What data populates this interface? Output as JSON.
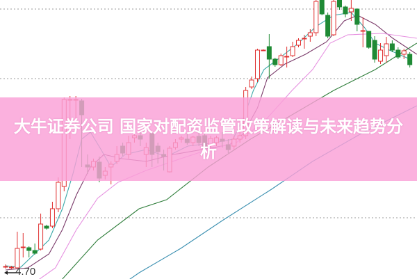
{
  "title": "大牛证券公司 国家对配资监管政策解读与未来趋势分析",
  "chart_data": {
    "type": "candlestick",
    "title": "大牛证券公司 国家对配资监管政策解读与未来趋势分析",
    "ylim": [
      4.57,
      8.58
    ],
    "grid": "dotted horizontal",
    "gridlines": [
      8.45,
      7.45,
      5.45
    ],
    "annotations": [
      {
        "text": "4.70",
        "price": 4.7
      }
    ],
    "colors": {
      "up": "#e03030",
      "down": "#1f8a35",
      "ma5": "#3aa8a8",
      "ma10": "#7a3a6a",
      "ma20": "#e690e0",
      "ma60": "#2e7d3a",
      "ma120": "#3a8fb0"
    },
    "candles_ohlc": [
      [
        4.75,
        4.75,
        4.78,
        4.72
      ],
      [
        4.73,
        4.74,
        4.76,
        4.71
      ],
      [
        4.73,
        5.01,
        5.25,
        4.72
      ],
      [
        5.03,
        5.03,
        5.23,
        4.88
      ],
      [
        5.02,
        4.98,
        5.04,
        4.88
      ],
      [
        4.98,
        4.94,
        5.08,
        4.92
      ],
      [
        5.0,
        5.36,
        5.51,
        4.98
      ],
      [
        5.33,
        5.3,
        5.35,
        5.28
      ],
      [
        5.33,
        5.58,
        5.68,
        5.3
      ],
      [
        5.58,
        5.96,
        6.03,
        5.53
      ],
      [
        5.9,
        7.15,
        7.18,
        5.83
      ],
      [
        7.15,
        7.15,
        7.2,
        6.58
      ],
      [
        7.15,
        7.15,
        7.2,
        6.68
      ],
      [
        7.13,
        6.93,
        7.16,
        6.18
      ],
      [
        6.21,
        6.18,
        6.36,
        6.08
      ],
      [
        6.18,
        6.26,
        6.3,
        6.13
      ],
      [
        6.25,
        6.02,
        6.33,
        5.96
      ],
      [
        6.06,
        6.12,
        6.18,
        6.0
      ],
      [
        6.18,
        6.22,
        6.26,
        5.93
      ],
      [
        6.26,
        6.36,
        6.48,
        6.22
      ],
      [
        6.48,
        6.38,
        6.53,
        6.34
      ],
      [
        6.36,
        6.53,
        6.63,
        6.3
      ],
      [
        6.6,
        6.63,
        6.7,
        6.53
      ],
      [
        6.63,
        6.58,
        6.68,
        6.48
      ],
      [
        6.36,
        6.46,
        6.53,
        6.18
      ],
      [
        6.66,
        6.36,
        6.68,
        6.18
      ],
      [
        6.48,
        6.4,
        6.53,
        6.23
      ],
      [
        6.36,
        6.33,
        6.43,
        6.13
      ],
      [
        6.11,
        6.45,
        6.48,
        6.1
      ],
      [
        6.46,
        6.53,
        6.58,
        6.43
      ],
      [
        6.58,
        6.6,
        6.63,
        6.53
      ],
      [
        6.58,
        6.53,
        6.66,
        6.5
      ],
      [
        6.53,
        6.61,
        6.63,
        6.48
      ],
      [
        6.62,
        6.53,
        6.68,
        6.48
      ],
      [
        6.63,
        6.45,
        6.68,
        6.4
      ],
      [
        6.5,
        6.59,
        6.63,
        6.46
      ],
      [
        6.53,
        6.6,
        6.63,
        6.48
      ],
      [
        6.58,
        6.55,
        6.68,
        6.46
      ],
      [
        6.5,
        6.43,
        6.58,
        6.38
      ],
      [
        6.48,
        6.58,
        6.63,
        6.43
      ],
      [
        6.58,
        6.63,
        6.73,
        6.53
      ],
      [
        6.63,
        7.28,
        7.33,
        6.58
      ],
      [
        7.33,
        7.43,
        7.48,
        7.3
      ],
      [
        7.45,
        7.86,
        7.88,
        7.4
      ],
      [
        7.86,
        7.86,
        7.87,
        7.85
      ],
      [
        7.91,
        7.73,
        8.09,
        7.45
      ],
      [
        7.73,
        7.65,
        7.75,
        7.62
      ],
      [
        7.65,
        7.78,
        7.81,
        7.63
      ],
      [
        7.77,
        7.77,
        7.91,
        7.61
      ],
      [
        7.78,
        7.91,
        7.98,
        7.76
      ],
      [
        7.93,
        8.0,
        8.03,
        7.9
      ],
      [
        8.03,
        8.03,
        8.08,
        7.88
      ],
      [
        8.06,
        8.11,
        8.16,
        7.98
      ],
      [
        8.11,
        8.56,
        8.58,
        8.06
      ],
      [
        8.58,
        8.38,
        8.58,
        8.36
      ],
      [
        8.36,
        8.06,
        8.4,
        8.03
      ],
      [
        8.08,
        8.56,
        8.58,
        8.06
      ],
      [
        8.58,
        8.48,
        8.58,
        8.44
      ],
      [
        8.48,
        8.38,
        8.5,
        8.33
      ],
      [
        8.41,
        8.46,
        8.58,
        8.28
      ],
      [
        8.45,
        8.23,
        8.46,
        8.13
      ],
      [
        8.14,
        8.14,
        8.33,
        7.9
      ],
      [
        8.13,
        7.9,
        8.13,
        7.88
      ],
      [
        8.0,
        7.73,
        8.06,
        7.68
      ],
      [
        7.7,
        7.86,
        7.96,
        7.66
      ],
      [
        7.78,
        7.95,
        8.05,
        7.68
      ],
      [
        7.95,
        7.86,
        8.0,
        7.83
      ],
      [
        7.86,
        7.76,
        7.9,
        7.73
      ],
      [
        7.8,
        7.85,
        7.88,
        7.73
      ],
      [
        7.8,
        7.65,
        7.83,
        7.61
      ]
    ],
    "moving_averages": [
      {
        "key": "ma5",
        "points": [
          [
            0,
            4.76
          ],
          [
            2.6,
            4.74
          ],
          [
            7.4,
            5.13
          ],
          [
            9.7,
            5.58
          ],
          [
            11.5,
            6.08
          ],
          [
            13,
            6.58
          ],
          [
            14.5,
            6.68
          ],
          [
            16.3,
            6.43
          ],
          [
            18,
            6.18
          ],
          [
            20.4,
            6.36
          ],
          [
            24,
            6.43
          ],
          [
            27.5,
            6.33
          ],
          [
            31.1,
            6.48
          ],
          [
            35.8,
            6.53
          ],
          [
            38.8,
            6.58
          ],
          [
            40.6,
            6.88
          ],
          [
            42.3,
            7.28
          ],
          [
            44.1,
            7.58
          ],
          [
            46.5,
            7.73
          ],
          [
            50,
            7.96
          ],
          [
            53,
            8.2
          ],
          [
            56,
            8.36
          ],
          [
            59,
            8.4
          ],
          [
            61.3,
            8.18
          ],
          [
            63.1,
            7.96
          ],
          [
            65.5,
            7.86
          ],
          [
            69,
            7.73
          ]
        ]
      },
      {
        "key": "ma10",
        "points": [
          [
            0,
            4.7
          ],
          [
            3.8,
            4.73
          ],
          [
            7.4,
            4.93
          ],
          [
            9.7,
            5.28
          ],
          [
            12.1,
            5.78
          ],
          [
            14.5,
            6.18
          ],
          [
            16.8,
            6.36
          ],
          [
            19.8,
            6.3
          ],
          [
            24,
            6.26
          ],
          [
            28.7,
            6.36
          ],
          [
            33.5,
            6.43
          ],
          [
            38.2,
            6.5
          ],
          [
            40.6,
            6.66
          ],
          [
            43,
            7.03
          ],
          [
            44.7,
            7.46
          ],
          [
            47.7,
            7.66
          ],
          [
            51.2,
            7.8
          ],
          [
            54.8,
            7.98
          ],
          [
            57.8,
            8.28
          ],
          [
            60.1,
            8.36
          ],
          [
            63.1,
            8.23
          ],
          [
            66.1,
            8.03
          ],
          [
            70.2,
            7.8
          ]
        ]
      },
      {
        "key": "ma20",
        "points": [
          [
            3.8,
            4.45
          ],
          [
            8.5,
            4.73
          ],
          [
            12.1,
            5.28
          ],
          [
            15.7,
            5.73
          ],
          [
            19.2,
            5.96
          ],
          [
            24,
            6.13
          ],
          [
            29.9,
            6.3
          ],
          [
            34.6,
            6.43
          ],
          [
            39.4,
            6.53
          ],
          [
            44.1,
            6.83
          ],
          [
            48.9,
            7.28
          ],
          [
            52.4,
            7.58
          ],
          [
            55.4,
            7.96
          ],
          [
            58.4,
            8.08
          ],
          [
            64.3,
            8.1
          ],
          [
            70.2,
            8.03
          ]
        ]
      },
      {
        "key": "ma60",
        "points": [
          [
            9.7,
            4.57
          ],
          [
            15.7,
            5.13
          ],
          [
            22.8,
            5.58
          ],
          [
            27.5,
            5.71
          ],
          [
            34.6,
            6.18
          ],
          [
            41.8,
            6.58
          ],
          [
            48.9,
            6.93
          ],
          [
            56,
            7.28
          ],
          [
            63.1,
            7.58
          ],
          [
            70.2,
            7.96
          ]
        ]
      },
      {
        "key": "ma120",
        "points": [
          [
            19.2,
            4.45
          ],
          [
            22.8,
            4.66
          ],
          [
            29.9,
            5.01
          ],
          [
            37,
            5.41
          ],
          [
            45.4,
            5.86
          ],
          [
            52.4,
            6.26
          ],
          [
            60.7,
            6.66
          ],
          [
            70.2,
            7.06
          ]
        ]
      }
    ]
  }
}
